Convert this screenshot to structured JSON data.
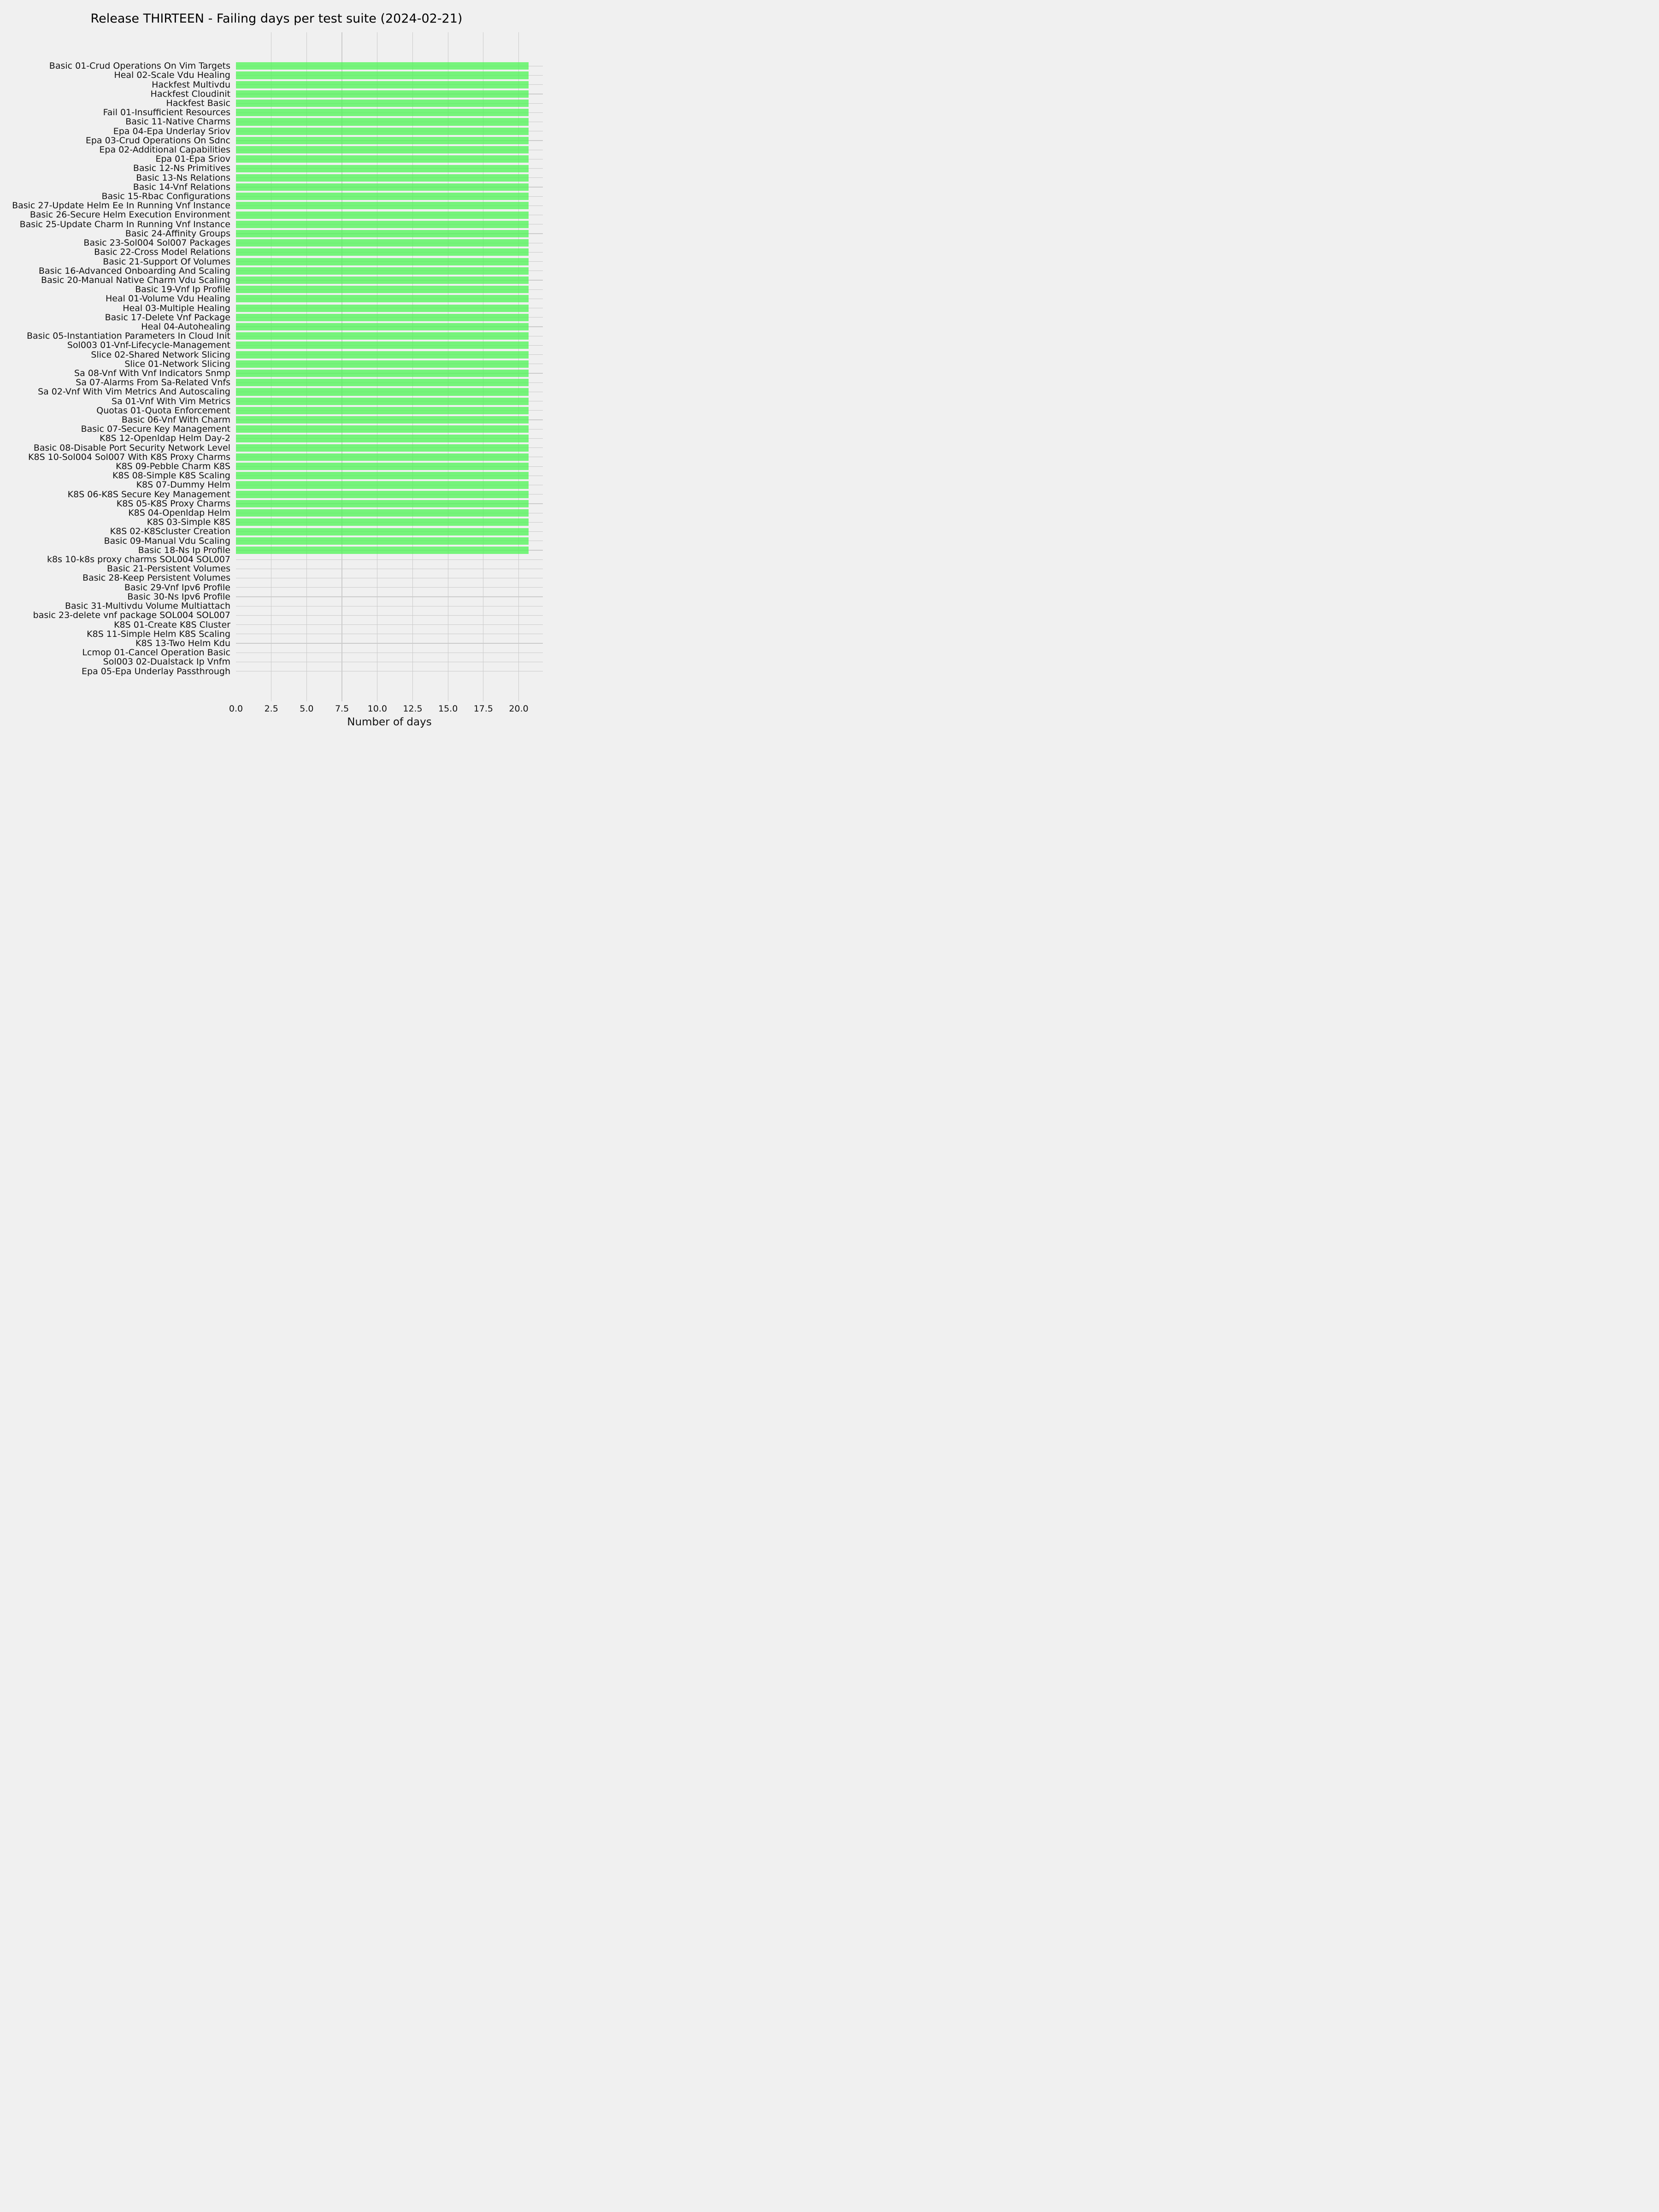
{
  "figure": {
    "title": "Release THIRTEEN - Failing days per test suite (2024-02-21)",
    "xlabel": "Number of days"
  },
  "colors": {
    "background": "#f0f0f0",
    "grid": "#cbcbcb",
    "bar_fill": "rgba(70,245,78,0.72)",
    "bar_rendered": "#77f57c",
    "text": "#111111"
  },
  "chart_data": {
    "type": "bar",
    "orientation": "horizontal",
    "title": "Release THIRTEEN - Failing days per test suite (2024-02-21)",
    "xlabel": "Number of days",
    "ylabel": "",
    "xlim": [
      0,
      21.7
    ],
    "grid": true,
    "legend": false,
    "xticks": [
      0,
      2.5,
      5,
      7.5,
      10,
      12.5,
      15,
      17.5,
      20
    ],
    "xtick_labels": [
      "0.0",
      "2.5",
      "5.0",
      "7.5",
      "10.0",
      "12.5",
      "15.0",
      "17.5",
      "20.0"
    ],
    "bar_value_days": 20.7,
    "categories": [
      "Basic 01-Crud Operations On Vim Targets",
      "Heal 02-Scale Vdu Healing",
      "Hackfest Multivdu",
      "Hackfest Cloudinit",
      "Hackfest Basic",
      "Fail 01-Insufficient Resources",
      "Basic 11-Native Charms",
      "Epa 04-Epa Underlay Sriov",
      "Epa 03-Crud Operations On Sdnc",
      "Epa 02-Additional Capabilities",
      "Epa 01-Epa Sriov",
      "Basic 12-Ns Primitives",
      "Basic 13-Ns Relations",
      "Basic 14-Vnf Relations",
      "Basic 15-Rbac Configurations",
      "Basic 27-Update Helm Ee In Running Vnf Instance",
      "Basic 26-Secure Helm Execution Environment",
      "Basic 25-Update Charm In Running Vnf Instance",
      "Basic 24-Affinity Groups",
      "Basic 23-Sol004 Sol007 Packages",
      "Basic 22-Cross Model Relations",
      "Basic 21-Support Of Volumes",
      "Basic 16-Advanced Onboarding And Scaling",
      "Basic 20-Manual Native Charm Vdu Scaling",
      "Basic 19-Vnf Ip Profile",
      "Heal 01-Volume Vdu Healing",
      "Heal 03-Multiple Healing",
      "Basic 17-Delete Vnf Package",
      "Heal 04-Autohealing",
      "Basic 05-Instantiation Parameters In Cloud Init",
      "Sol003 01-Vnf-Lifecycle-Management",
      "Slice 02-Shared Network Slicing",
      "Slice 01-Network Slicing",
      "Sa 08-Vnf With Vnf Indicators Snmp",
      "Sa 07-Alarms From Sa-Related Vnfs",
      "Sa 02-Vnf With Vim Metrics And Autoscaling",
      "Sa 01-Vnf With Vim Metrics",
      "Quotas 01-Quota Enforcement",
      "Basic 06-Vnf With Charm",
      "Basic 07-Secure Key Management",
      "K8S 12-Openldap Helm Day-2",
      "Basic 08-Disable Port Security Network Level",
      "K8S 10-Sol004 Sol007 With K8S Proxy Charms",
      "K8S 09-Pebble Charm K8S",
      "K8S 08-Simple K8S Scaling",
      "K8S 07-Dummy Helm",
      "K8S 06-K8S Secure Key Management",
      "K8S 05-K8S Proxy Charms",
      "K8S 04-Openldap Helm",
      "K8S 03-Simple K8S",
      "K8S 02-K8Scluster Creation",
      "Basic 09-Manual Vdu Scaling",
      "Basic 18-Ns Ip Profile",
      "k8s 10-k8s proxy charms SOL004 SOL007",
      "Basic 21-Persistent Volumes",
      "Basic 28-Keep Persistent Volumes",
      "Basic 29-Vnf Ipv6 Profile",
      "Basic 30-Ns Ipv6 Profile",
      "Basic 31-Multivdu Volume Multiattach",
      "basic 23-delete vnf package SOL004 SOL007",
      "K8S 01-Create K8S Cluster",
      "K8S 11-Simple Helm K8S Scaling",
      "K8S 13-Two Helm Kdu",
      "Lcmop 01-Cancel Operation Basic",
      "Sol003 02-Dualstack Ip Vnfm",
      "Epa 05-Epa Underlay Passthrough"
    ],
    "values": [
      20.7,
      20.7,
      20.7,
      20.7,
      20.7,
      20.7,
      20.7,
      20.7,
      20.7,
      20.7,
      20.7,
      20.7,
      20.7,
      20.7,
      20.7,
      20.7,
      20.7,
      20.7,
      20.7,
      20.7,
      20.7,
      20.7,
      20.7,
      20.7,
      20.7,
      20.7,
      20.7,
      20.7,
      20.7,
      20.7,
      20.7,
      20.7,
      20.7,
      20.7,
      20.7,
      20.7,
      20.7,
      20.7,
      20.7,
      20.7,
      20.7,
      20.7,
      20.7,
      20.7,
      20.7,
      20.7,
      20.7,
      20.7,
      20.7,
      20.7,
      20.7,
      20.7,
      20.7,
      0,
      0,
      0,
      0,
      0,
      0,
      0,
      0,
      0,
      0,
      0,
      0,
      0
    ]
  }
}
